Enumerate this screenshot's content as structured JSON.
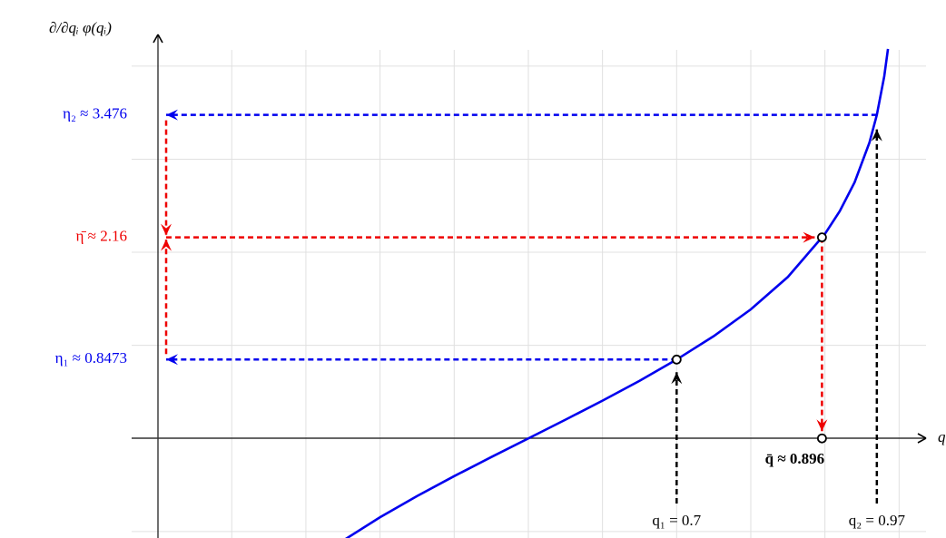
{
  "chart_data": {
    "type": "line",
    "x_label": "q",
    "y_label": "∂/∂qᵢ φ(qᵢ)",
    "x": [
      0.25,
      0.3,
      0.35,
      0.4,
      0.45,
      0.5,
      0.55,
      0.6,
      0.65,
      0.7,
      0.75,
      0.8,
      0.85,
      0.9,
      0.92,
      0.94,
      0.96,
      0.97,
      0.98,
      0.985
    ],
    "values": [
      -1.0986,
      -0.8473,
      -0.619,
      -0.4055,
      -0.2007,
      0,
      0.2007,
      0.4055,
      0.619,
      0.8473,
      1.0986,
      1.3863,
      1.7346,
      2.1972,
      2.4423,
      2.7515,
      3.1781,
      3.4761,
      3.8918,
      4.1846
    ],
    "color": "#0000ee",
    "xlim": [
      -0.035,
      1.04
    ],
    "ylim": [
      -1.07,
      4.34
    ],
    "xgrid": [
      0.1,
      0.2,
      0.3,
      0.4,
      0.5,
      0.6,
      0.7,
      0.8,
      0.9,
      1.0
    ],
    "ygrid": [
      -1,
      1,
      2,
      3,
      4
    ],
    "y_markers": [
      {
        "label": "η₂ ≈ 3.476",
        "value": 3.476,
        "color": "#0000ee"
      },
      {
        "label": "η̄ ≈ 2.16",
        "value": 2.16,
        "color": "#ee0000"
      },
      {
        "label": "η₁ ≈ 0.8473",
        "value": 0.8473,
        "color": "#0000ee"
      }
    ],
    "x_markers": [
      {
        "label": "q₁ = 0.7",
        "value": 0.7
      },
      {
        "label": "q₂ = 0.97",
        "value": 0.97
      },
      {
        "label": "q̄ ≈ 0.896",
        "value": 0.896
      }
    ]
  }
}
